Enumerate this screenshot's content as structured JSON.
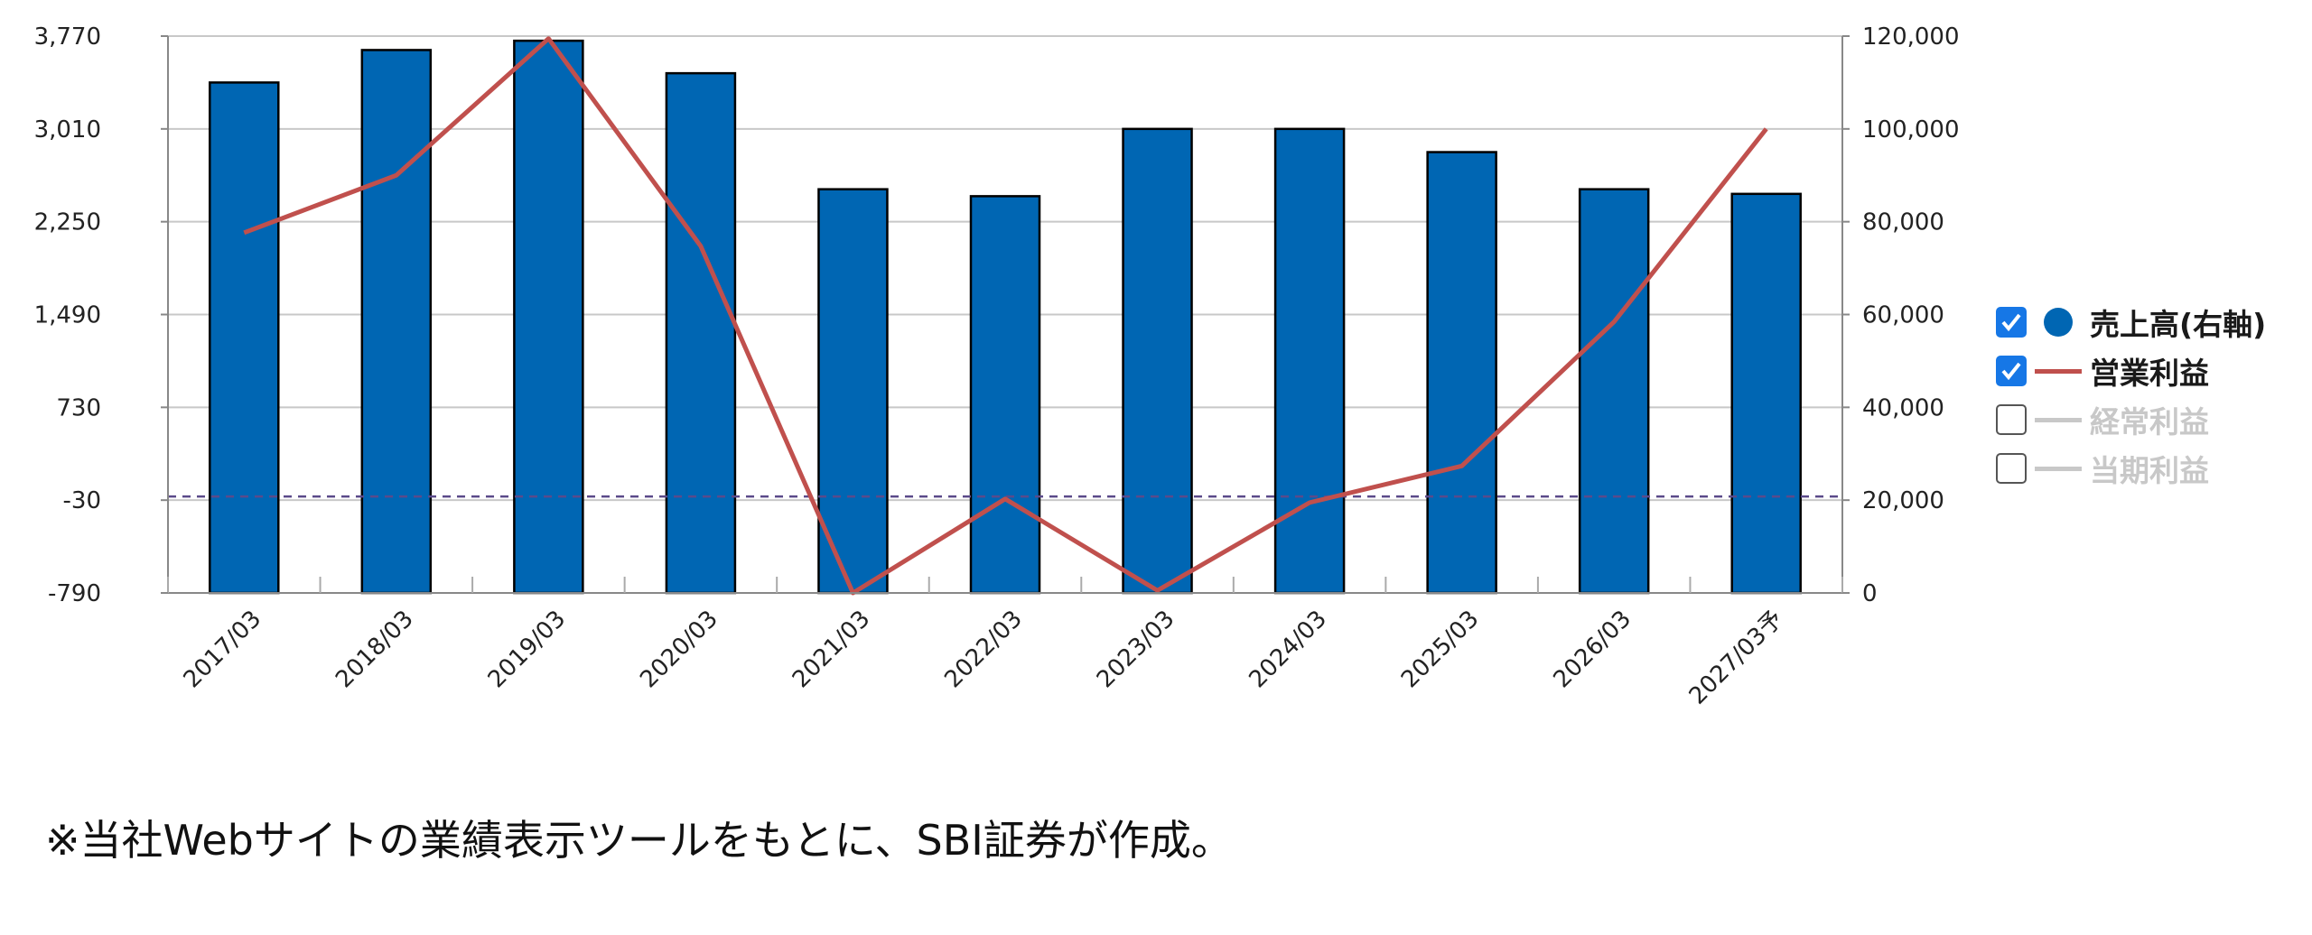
{
  "chart_data": {
    "type": "bar",
    "categories": [
      "2017/03",
      "2018/03",
      "2019/03",
      "2020/03",
      "2021/03",
      "2022/03",
      "2023/03",
      "2024/03",
      "2025/03",
      "2026/03",
      "2027/03予"
    ],
    "series": [
      {
        "name": "売上高(右軸)",
        "type": "bar",
        "axis": "right",
        "values": [
          110000,
          117000,
          119000,
          112000,
          87000,
          85500,
          100000,
          100000,
          95000,
          87000,
          86000
        ]
      },
      {
        "name": "営業利益",
        "type": "line",
        "axis": "left",
        "values": [
          2160,
          2630,
          3750,
          2050,
          -790,
          -20,
          -770,
          -50,
          250,
          1430,
          3010
        ]
      }
    ],
    "y_left": {
      "ticks": [
        "3,770",
        "3,010",
        "2,250",
        "1,490",
        "730",
        "-30",
        "-790"
      ],
      "ylim": [
        -790,
        3770
      ]
    },
    "y_right": {
      "ticks": [
        "120,000",
        "100,000",
        "80,000",
        "60,000",
        "40,000",
        "20,000",
        "0"
      ],
      "ylim": [
        0,
        120000
      ]
    },
    "reference_line": {
      "axis": "left",
      "value": 0,
      "style": "dashed"
    },
    "grid": true,
    "legend_position": "right",
    "colors": {
      "bar": "#0066b3",
      "line": "#c0504d",
      "reference": "#5b4a8a",
      "grid": "#c8c8c8"
    }
  },
  "legend": {
    "items": [
      {
        "label": "売上高(右軸)",
        "checked": true,
        "active": true,
        "marker": "dot",
        "color": "#0066b3"
      },
      {
        "label": "営業利益",
        "checked": true,
        "active": true,
        "marker": "line",
        "color": "#c0504d"
      },
      {
        "label": "経常利益",
        "checked": false,
        "active": false,
        "marker": "line",
        "color": "#c8c8c8"
      },
      {
        "label": "当期利益",
        "checked": false,
        "active": false,
        "marker": "line",
        "color": "#c8c8c8"
      }
    ]
  },
  "note": "※当社Webサイトの業績表示ツールをもとに、SBI証券が作成。"
}
